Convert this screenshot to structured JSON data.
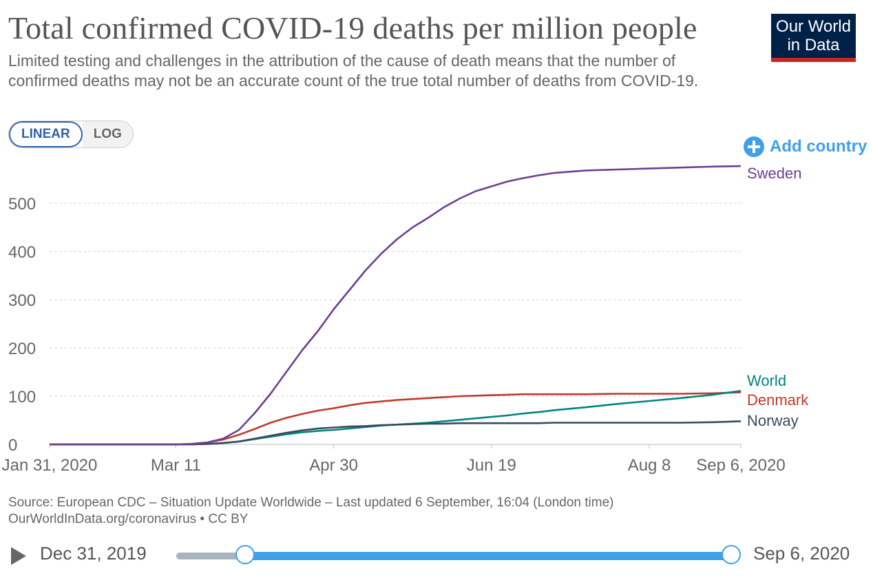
{
  "title": "Total confirmed COVID-19 deaths per million people",
  "subtitle": "Limited testing and challenges in the attribution of the cause of death means that the number of confirmed deaths may not be an accurate count of the true total number of deaths from COVID-19.",
  "logo": {
    "line1": "Our World",
    "line2": "in Data"
  },
  "scale_toggle": {
    "linear": "LINEAR",
    "log": "LOG",
    "selected": "LINEAR"
  },
  "add_country": "Add country",
  "source": {
    "line1": "Source: European CDC – Situation Update Worldwide – Last updated 6 September, 16:04 (London time)",
    "line2": "OurWorldInData.org/coronavirus • CC BY"
  },
  "timeline": {
    "start_label": "Dec 31, 2019",
    "end_label": "Sep 6, 2020"
  },
  "colors": {
    "Sweden": "#6d3e91",
    "World": "#00847e",
    "Denmark": "#c0392b",
    "Norway": "#374a5e",
    "accent": "#3fa0e8"
  },
  "chart_data": {
    "type": "line",
    "x": [
      "2020-01-31",
      "2020-02-20",
      "2020-03-11",
      "2020-03-16",
      "2020-03-21",
      "2020-03-26",
      "2020-03-31",
      "2020-04-05",
      "2020-04-10",
      "2020-04-15",
      "2020-04-20",
      "2020-04-25",
      "2020-04-30",
      "2020-05-05",
      "2020-05-10",
      "2020-05-15",
      "2020-05-20",
      "2020-05-25",
      "2020-05-30",
      "2020-06-04",
      "2020-06-09",
      "2020-06-14",
      "2020-06-19",
      "2020-06-24",
      "2020-06-29",
      "2020-07-04",
      "2020-07-09",
      "2020-07-19",
      "2020-07-29",
      "2020-08-08",
      "2020-08-18",
      "2020-08-28",
      "2020-09-06"
    ],
    "series": [
      {
        "name": "Sweden",
        "values": [
          0,
          0,
          0,
          1,
          4,
          12,
          30,
          65,
          105,
          150,
          195,
          235,
          280,
          320,
          360,
          395,
          425,
          450,
          470,
          492,
          510,
          525,
          535,
          545,
          552,
          558,
          563,
          568,
          570,
          572,
          574,
          576,
          577
        ]
      },
      {
        "name": "World",
        "values": [
          0,
          0,
          0,
          0,
          1,
          3,
          6,
          11,
          16,
          21,
          25,
          28,
          30,
          33,
          36,
          39,
          41,
          43,
          45,
          48,
          51,
          54,
          57,
          60,
          64,
          67,
          71,
          77,
          84,
          90,
          96,
          103,
          111
        ]
      },
      {
        "name": "Denmark",
        "values": [
          0,
          0,
          0,
          1,
          4,
          10,
          20,
          32,
          45,
          55,
          63,
          70,
          75,
          81,
          86,
          89,
          92,
          94,
          96,
          98,
          100,
          101,
          102,
          103,
          104,
          104,
          104,
          104,
          105,
          105,
          105,
          106,
          108
        ]
      },
      {
        "name": "Norway",
        "values": [
          0,
          0,
          0,
          0,
          1,
          3,
          6,
          12,
          18,
          24,
          29,
          33,
          35,
          37,
          38,
          40,
          41,
          42,
          43,
          43,
          44,
          44,
          44,
          44,
          44,
          44,
          45,
          45,
          45,
          45,
          45,
          46,
          48
        ]
      }
    ],
    "x_tick_labels": [
      "Jan 31, 2020",
      "Mar 11",
      "Apr 30",
      "Jun 19",
      "Aug 8",
      "Sep 6, 2020"
    ],
    "x_tick_dates": [
      "2020-01-31",
      "2020-03-11",
      "2020-04-30",
      "2020-06-19",
      "2020-08-08",
      "2020-09-06"
    ],
    "y_ticks": [
      0,
      100,
      200,
      300,
      400,
      500
    ],
    "ylim": [
      0,
      580
    ],
    "grid": "horizontal dashed",
    "legend": "line-end labels"
  }
}
